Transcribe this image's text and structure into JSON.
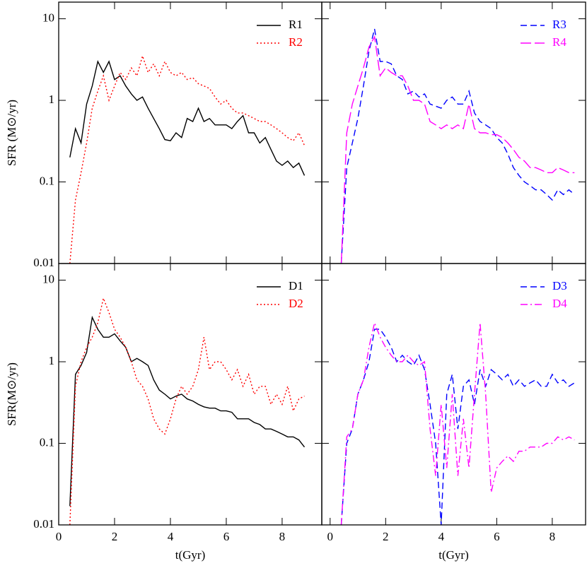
{
  "chart_data": [
    {
      "type": "line",
      "ylabel": "SFR (M⊙/yr)",
      "log_scale": true,
      "legend": "upper right",
      "xlim": [
        0,
        9.42
      ],
      "ylim": [
        0.01,
        16
      ],
      "yticks": [
        0.01,
        0.1,
        1,
        10
      ],
      "xticks": [
        0,
        2,
        4,
        6,
        8
      ],
      "show_xtick_labels": false,
      "show_ytick_labels": true,
      "x": [
        0.4,
        0.6,
        0.8,
        1.0,
        1.2,
        1.4,
        1.6,
        1.8,
        2.0,
        2.2,
        2.4,
        2.6,
        2.8,
        3.0,
        3.2,
        3.4,
        3.6,
        3.8,
        4.0,
        4.2,
        4.4,
        4.6,
        4.8,
        5.0,
        5.2,
        5.4,
        5.6,
        5.8,
        6.0,
        6.2,
        6.4,
        6.6,
        6.8,
        7.0,
        7.2,
        7.4,
        7.6,
        7.8,
        8.0,
        8.2,
        8.4,
        8.6,
        8.8
      ],
      "series": [
        {
          "name": "R1",
          "color": "#000000",
          "dash": "solid",
          "values": [
            0.2,
            0.45,
            0.3,
            0.9,
            1.5,
            3.0,
            2.2,
            3.0,
            1.8,
            2.0,
            1.5,
            1.2,
            1.0,
            1.1,
            0.8,
            0.6,
            0.45,
            0.33,
            0.32,
            0.4,
            0.35,
            0.6,
            0.55,
            0.8,
            0.55,
            0.6,
            0.5,
            0.5,
            0.5,
            0.45,
            0.55,
            0.65,
            0.4,
            0.4,
            0.3,
            0.35,
            0.25,
            0.18,
            0.16,
            0.18,
            0.15,
            0.17,
            0.12
          ]
        },
        {
          "name": "R2",
          "color": "#ff0000",
          "dash": "dotted",
          "values": [
            0.01,
            0.06,
            0.13,
            0.3,
            0.8,
            1.3,
            2.0,
            1.0,
            1.5,
            2.2,
            1.8,
            2.5,
            2.0,
            3.5,
            2.2,
            2.8,
            2.0,
            3.0,
            2.2,
            2.0,
            2.2,
            1.8,
            1.9,
            1.6,
            1.5,
            1.4,
            1.1,
            0.9,
            1.0,
            0.8,
            0.7,
            0.7,
            0.65,
            0.6,
            0.55,
            0.55,
            0.5,
            0.45,
            0.4,
            0.35,
            0.32,
            0.4,
            0.28
          ]
        }
      ]
    },
    {
      "type": "line",
      "log_scale": true,
      "legend": "upper right",
      "xlim": [
        -0.3,
        9.2
      ],
      "ylim": [
        0.01,
        16
      ],
      "yticks": [
        0.01,
        0.1,
        1,
        10
      ],
      "xticks": [
        0,
        2,
        4,
        6,
        8
      ],
      "show_xtick_labels": false,
      "show_ytick_labels": false,
      "x": [
        0.4,
        0.6,
        0.8,
        1.0,
        1.2,
        1.4,
        1.6,
        1.8,
        2.0,
        2.2,
        2.4,
        2.6,
        2.8,
        3.0,
        3.2,
        3.4,
        3.6,
        3.8,
        4.0,
        4.2,
        4.4,
        4.6,
        4.8,
        5.0,
        5.2,
        5.4,
        5.6,
        5.8,
        6.0,
        6.2,
        6.4,
        6.6,
        6.8,
        7.0,
        7.2,
        7.4,
        7.6,
        7.8,
        8.0,
        8.2,
        8.4,
        8.6,
        8.8
      ],
      "series": [
        {
          "name": "R3",
          "color": "#0000ff",
          "dash": "dashed",
          "values": [
            0.01,
            0.15,
            0.3,
            0.6,
            1.5,
            4.0,
            7.5,
            3.0,
            3.0,
            2.8,
            2.0,
            1.8,
            1.2,
            1.3,
            1.1,
            1.2,
            0.9,
            0.85,
            0.8,
            1.0,
            1.1,
            0.9,
            0.9,
            1.3,
            0.7,
            0.55,
            0.5,
            0.45,
            0.35,
            0.3,
            0.22,
            0.15,
            0.12,
            0.1,
            0.09,
            0.08,
            0.08,
            0.07,
            0.06,
            0.08,
            0.07,
            0.08,
            0.07
          ]
        },
        {
          "name": "R4",
          "color": "#ff00ff",
          "dash": "long-dashed",
          "values": [
            0.01,
            0.4,
            0.9,
            1.5,
            2.5,
            4.5,
            6.0,
            2.0,
            2.5,
            2.2,
            2.0,
            2.0,
            1.5,
            1.0,
            1.0,
            0.9,
            0.55,
            0.5,
            0.45,
            0.5,
            0.45,
            0.5,
            0.45,
            0.9,
            0.45,
            0.4,
            0.4,
            0.38,
            0.38,
            0.35,
            0.3,
            0.25,
            0.2,
            0.18,
            0.15,
            0.15,
            0.14,
            0.13,
            0.13,
            0.15,
            0.14,
            0.13,
            0.13
          ]
        }
      ]
    },
    {
      "type": "line",
      "ylabel": "SFR(M⊙/yr)",
      "xlabel": "t(Gyr)",
      "log_scale": true,
      "legend": "upper right",
      "xlim": [
        0,
        9.42
      ],
      "ylim": [
        0.01,
        16
      ],
      "yticks": [
        0.01,
        0.1,
        1,
        10
      ],
      "xticks": [
        0,
        2,
        4,
        6,
        8
      ],
      "show_xtick_labels": true,
      "show_ytick_labels": true,
      "x": [
        0.4,
        0.6,
        0.8,
        1.0,
        1.2,
        1.4,
        1.6,
        1.8,
        2.0,
        2.2,
        2.4,
        2.6,
        2.8,
        3.0,
        3.2,
        3.4,
        3.6,
        3.8,
        4.0,
        4.2,
        4.4,
        4.6,
        4.8,
        5.0,
        5.2,
        5.4,
        5.6,
        5.8,
        6.0,
        6.2,
        6.4,
        6.6,
        6.8,
        7.0,
        7.2,
        7.4,
        7.6,
        7.8,
        8.0,
        8.2,
        8.4,
        8.6,
        8.8
      ],
      "series": [
        {
          "name": "D1",
          "color": "#000000",
          "dash": "solid",
          "values": [
            0.017,
            0.7,
            0.9,
            1.3,
            3.5,
            2.5,
            2.0,
            2.0,
            2.2,
            1.8,
            1.5,
            1.0,
            1.1,
            1.0,
            0.9,
            0.6,
            0.45,
            0.4,
            0.35,
            0.38,
            0.4,
            0.35,
            0.33,
            0.3,
            0.28,
            0.27,
            0.27,
            0.25,
            0.25,
            0.24,
            0.2,
            0.2,
            0.2,
            0.18,
            0.17,
            0.15,
            0.15,
            0.14,
            0.13,
            0.12,
            0.12,
            0.11,
            0.09
          ]
        },
        {
          "name": "D2",
          "color": "#ff0000",
          "dash": "dotted",
          "values": [
            0.01,
            0.5,
            1.0,
            1.5,
            2.0,
            3.0,
            6.0,
            4.0,
            2.5,
            2.0,
            1.5,
            1.0,
            0.6,
            0.5,
            0.35,
            0.2,
            0.15,
            0.13,
            0.2,
            0.35,
            0.5,
            0.4,
            0.5,
            0.8,
            2.0,
            0.8,
            1.0,
            1.0,
            0.8,
            0.6,
            0.8,
            0.5,
            0.7,
            0.4,
            0.5,
            0.5,
            0.3,
            0.4,
            0.3,
            0.5,
            0.25,
            0.35,
            0.38
          ]
        }
      ]
    },
    {
      "type": "line",
      "xlabel": "t(Gyr)",
      "log_scale": true,
      "legend": "upper right",
      "xlim": [
        -0.3,
        9.2
      ],
      "ylim": [
        0.01,
        16
      ],
      "yticks": [
        0.01,
        0.1,
        1,
        10
      ],
      "xticks": [
        0,
        2,
        4,
        6,
        8
      ],
      "show_xtick_labels": true,
      "show_ytick_labels": false,
      "x": [
        0.4,
        0.6,
        0.8,
        1.0,
        1.2,
        1.4,
        1.6,
        1.8,
        2.0,
        2.2,
        2.4,
        2.6,
        2.8,
        3.0,
        3.2,
        3.4,
        3.6,
        3.8,
        4.0,
        4.2,
        4.4,
        4.6,
        4.8,
        5.0,
        5.2,
        5.4,
        5.6,
        5.8,
        6.0,
        6.2,
        6.4,
        6.6,
        6.8,
        7.0,
        7.2,
        7.4,
        7.6,
        7.8,
        8.0,
        8.2,
        8.4,
        8.6,
        8.8
      ],
      "series": [
        {
          "name": "D3",
          "color": "#0000ff",
          "dash": "dashed",
          "values": [
            0.01,
            0.1,
            0.15,
            0.4,
            0.6,
            1.0,
            2.5,
            2.5,
            2.0,
            1.5,
            1.0,
            1.2,
            1.0,
            0.9,
            1.2,
            0.8,
            0.3,
            0.1,
            0.01,
            0.4,
            0.7,
            0.15,
            0.5,
            0.6,
            0.3,
            0.8,
            0.5,
            0.8,
            0.7,
            0.6,
            0.7,
            0.5,
            0.6,
            0.5,
            0.55,
            0.6,
            0.5,
            0.5,
            0.7,
            0.55,
            0.6,
            0.5,
            0.55
          ]
        },
        {
          "name": "D4",
          "color": "#ff00ff",
          "dash": "dash-dot",
          "values": [
            0.01,
            0.12,
            0.15,
            0.4,
            0.6,
            1.5,
            3.0,
            2.0,
            1.5,
            1.2,
            1.0,
            1.0,
            1.2,
            1.0,
            0.9,
            1.0,
            0.15,
            0.04,
            0.3,
            0.05,
            0.4,
            0.04,
            0.2,
            0.05,
            0.4,
            3.0,
            0.4,
            0.025,
            0.05,
            0.06,
            0.07,
            0.06,
            0.08,
            0.08,
            0.09,
            0.09,
            0.09,
            0.1,
            0.1,
            0.12,
            0.11,
            0.12,
            0.11
          ]
        }
      ]
    }
  ]
}
